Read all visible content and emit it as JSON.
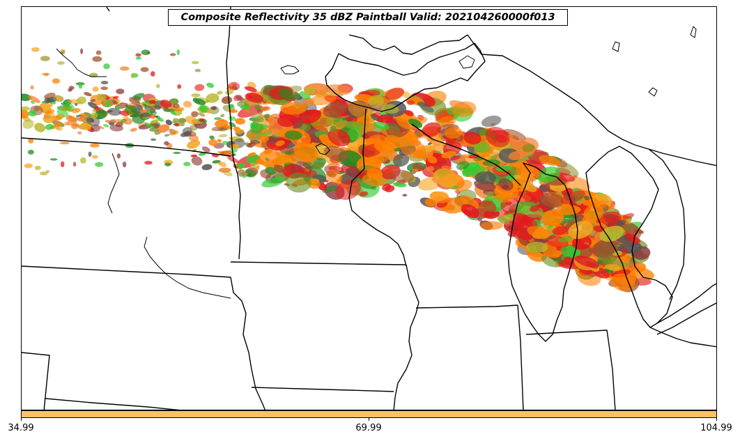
{
  "title": "Composite Reflectivity 35 dBZ Paintball Valid: 202104260000f013",
  "colorbar": {
    "fill_color": "#FDC164",
    "tick_labels": [
      "34.99",
      "69.99",
      "104.99"
    ]
  },
  "map": {
    "region": "Upper Midwest / Great Lakes",
    "line_color": "#000000"
  },
  "paintball_colors": [
    "#E31A1C",
    "#FF7F00",
    "#F58231",
    "#33CC33",
    "#228B22",
    "#6B8E23",
    "#9A9A3C",
    "#8B3A3A",
    "#A0522D",
    "#555555",
    "#F5A623",
    "#B8B82E"
  ]
}
